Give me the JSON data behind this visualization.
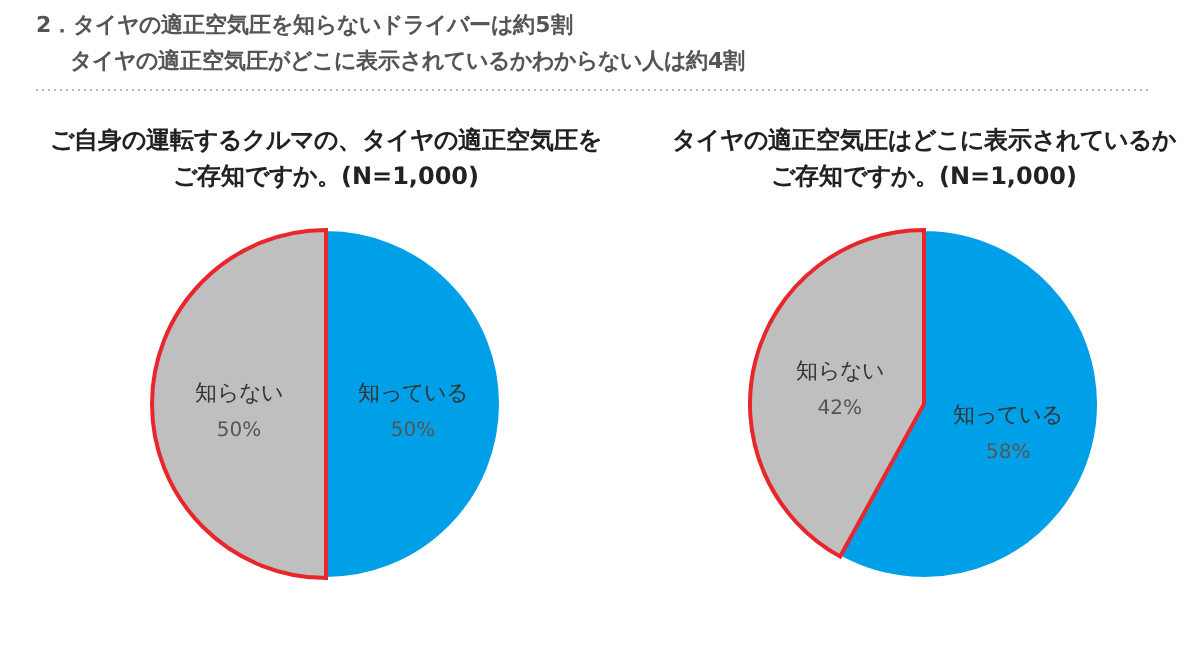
{
  "chart_data": [
    {
      "type": "pie",
      "title": "ご自身の運転するクルマの、タイヤの適正空気圧をご存知ですか。(N=1,000)",
      "annotations": [
        "2．タイヤの適正空気圧を知らないドライバーは約5割",
        "タイヤの適正空気圧がどこに表示されているかわからない人は約4割"
      ],
      "categories": [
        "知っている",
        "知らない"
      ],
      "values": [
        50,
        50
      ],
      "colors": [
        "#00a0e9",
        "#bfbfbf"
      ],
      "value_labels": [
        "50%",
        "50%"
      ],
      "legend": false
    },
    {
      "type": "pie",
      "title": "タイヤの適正空気圧はどこに表示されているかご存知ですか。(N=1,000)",
      "categories": [
        "知っている",
        "知らない"
      ],
      "values": [
        58,
        42
      ],
      "colors": [
        "#00a0e9",
        "#bfbfbf"
      ],
      "value_labels": [
        "58%",
        "42%"
      ],
      "legend": false
    }
  ]
}
